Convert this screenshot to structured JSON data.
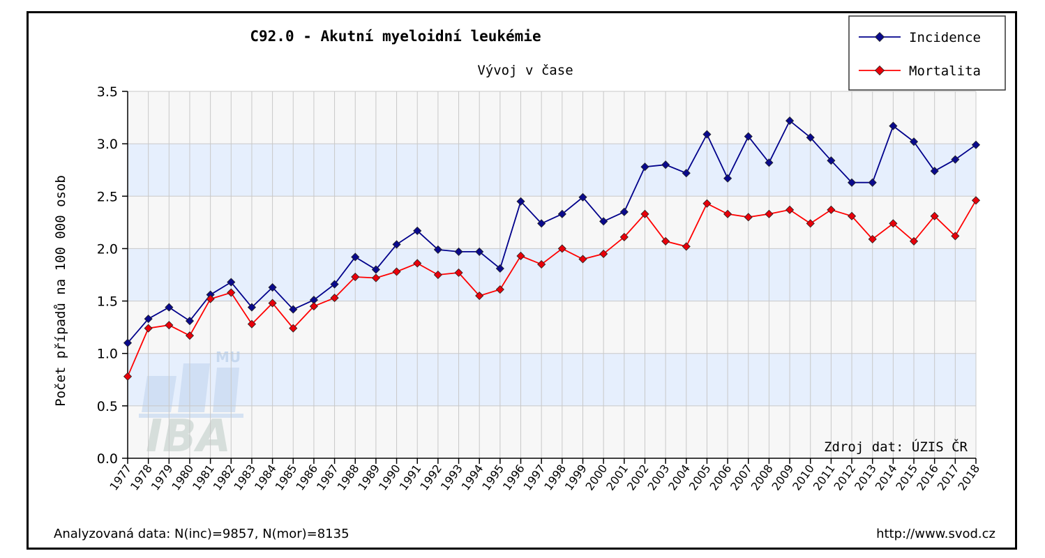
{
  "chart_data": {
    "type": "line",
    "title": "C92.0 - Akutní myeloidní leukémie",
    "subtitle": "Vývoj v čase",
    "xlabel": "",
    "ylabel": "Počet případů na 100 000 osob",
    "ylim": [
      0,
      3.5
    ],
    "yticks": [
      "0.0",
      "0.5",
      "1.0",
      "1.5",
      "2.0",
      "2.5",
      "3.0",
      "3.5"
    ],
    "grid": true,
    "legend_position": "top-right",
    "x": [
      "1977",
      "1978",
      "1979",
      "1980",
      "1981",
      "1982",
      "1983",
      "1984",
      "1985",
      "1986",
      "1987",
      "1988",
      "1989",
      "1990",
      "1991",
      "1992",
      "1993",
      "1994",
      "1995",
      "1996",
      "1997",
      "1998",
      "1999",
      "2000",
      "2001",
      "2002",
      "2003",
      "2004",
      "2005",
      "2006",
      "2007",
      "2008",
      "2009",
      "2010",
      "2011",
      "2012",
      "2013",
      "2014",
      "2015",
      "2016",
      "2017",
      "2018"
    ],
    "series": [
      {
        "name": "Incidence",
        "color": "#00008b",
        "marker_color": "#0a0a8c",
        "values": [
          1.1,
          1.33,
          1.44,
          1.31,
          1.56,
          1.68,
          1.44,
          1.63,
          1.42,
          1.51,
          1.66,
          1.92,
          1.8,
          2.04,
          2.17,
          1.99,
          1.97,
          1.97,
          1.81,
          2.45,
          2.24,
          2.33,
          2.49,
          2.26,
          2.35,
          2.78,
          2.8,
          2.72,
          3.09,
          2.67,
          3.07,
          2.82,
          3.22,
          3.06,
          2.84,
          2.63,
          2.63,
          3.17,
          3.02,
          2.74,
          2.85,
          2.99
        ]
      },
      {
        "name": "Mortalita",
        "color": "#ff0000",
        "marker_color": "#e8000a",
        "values": [
          0.78,
          1.24,
          1.27,
          1.17,
          1.52,
          1.58,
          1.28,
          1.48,
          1.24,
          1.45,
          1.53,
          1.73,
          1.72,
          1.78,
          1.86,
          1.75,
          1.77,
          1.55,
          1.61,
          1.93,
          1.85,
          2.0,
          1.9,
          1.95,
          2.11,
          2.33,
          2.07,
          2.02,
          2.43,
          2.33,
          2.3,
          2.33,
          2.37,
          2.24,
          2.37,
          2.31,
          2.09,
          2.24,
          2.07,
          2.31,
          2.12,
          2.46
        ]
      }
    ],
    "source_note": "Zdroj dat: ÚZIS ČR",
    "footer_left": "Analyzovaná data: N(inc)=9857, N(mor)=8135",
    "footer_right": "http://www.svod.cz",
    "watermark": {
      "main": "IBA",
      "small": "MU"
    },
    "colors": {
      "band": "#e6effd",
      "plot_bg": "#f7f7f7",
      "grid": "#c8c8c8"
    }
  }
}
